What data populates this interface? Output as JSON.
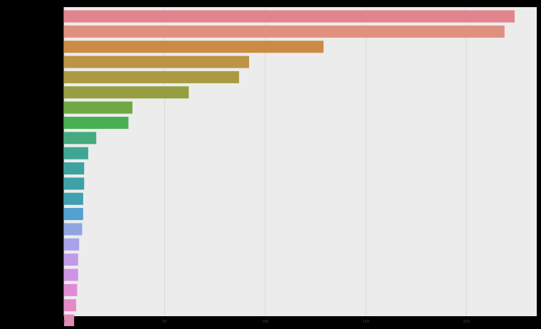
{
  "chart_data": {
    "type": "bar",
    "orientation": "horizontal",
    "title": "",
    "xlabel": "",
    "ylabel": "",
    "xlim": [
      0,
      235
    ],
    "grid": true,
    "legend": "none",
    "xticks": [
      "0",
      "50",
      "100",
      "150",
      "200"
    ],
    "background_color": "#ececec",
    "gridline_color": "#d9d9d9",
    "categories": [
      "",
      "",
      "",
      "",
      "",
      "",
      "",
      "",
      "",
      "",
      "",
      "",
      "",
      "",
      "",
      "",
      "",
      "",
      "",
      "",
      ""
    ],
    "values": [
      224,
      219,
      129,
      92,
      87,
      62,
      34,
      32,
      16,
      12,
      10,
      10,
      9.5,
      9.5,
      9,
      7.5,
      7,
      7,
      6.5,
      6,
      5
    ],
    "bar_colors": [
      "#e2848d",
      "#e0907e",
      "#cc8b45",
      "#bb9545",
      "#aa9a42",
      "#959f40",
      "#6fa845",
      "#47b052",
      "#44ab7f",
      "#3fa696",
      "#3da39f",
      "#3ca2a8",
      "#3ea0b1",
      "#52a1d0",
      "#90a4e2",
      "#a8a2e8",
      "#c09ae9",
      "#cf94e4",
      "#e18bd7",
      "#e48ac7",
      "#e28bb6"
    ]
  }
}
